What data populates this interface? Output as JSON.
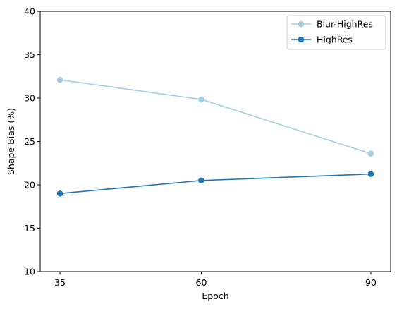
{
  "chart_data": {
    "type": "line",
    "title": "",
    "xlabel": "Epoch",
    "ylabel": "Shape Bias (%)",
    "x": [
      35,
      60,
      90
    ],
    "xticks": [
      "35",
      "60",
      "90"
    ],
    "ylim": [
      10,
      40
    ],
    "yticks": [
      10,
      15,
      20,
      25,
      30,
      35,
      40
    ],
    "grid": false,
    "legend_position": "top-right",
    "series": [
      {
        "name": "Blur-HighRes",
        "values": [
          32.1,
          29.85,
          23.6
        ],
        "color": "#a6cee3"
      },
      {
        "name": "HighRes",
        "values": [
          19.0,
          20.5,
          21.25
        ],
        "color": "#1f78b4"
      }
    ]
  }
}
